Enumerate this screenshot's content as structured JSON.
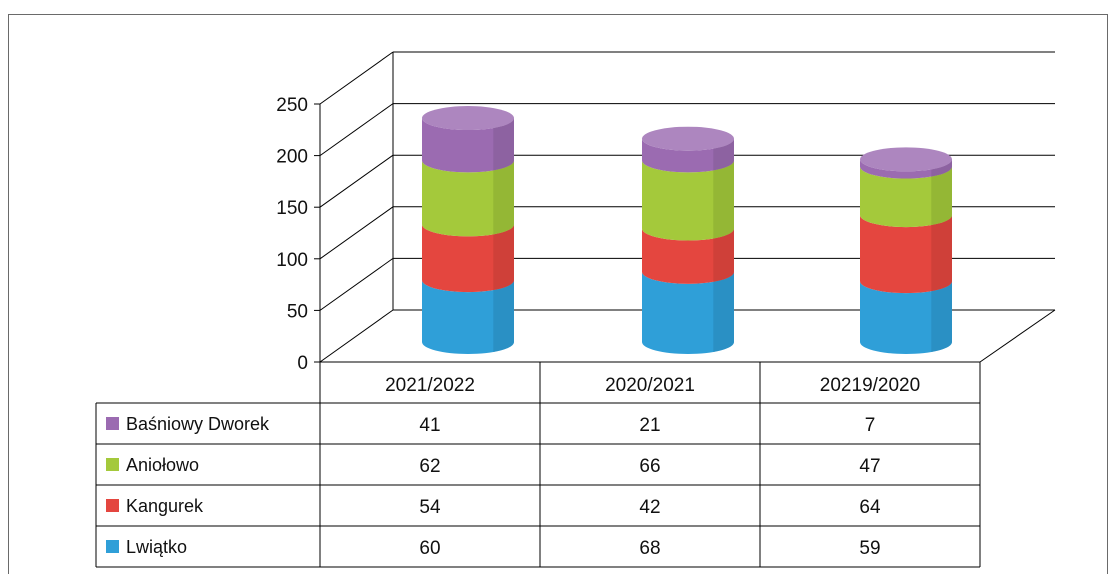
{
  "chart_data": {
    "type": "bar",
    "stacked": true,
    "style": "3d-cylinder",
    "categories": [
      "2021/2022",
      "2020/2021",
      "20219/2020"
    ],
    "series": [
      {
        "name": "Lwiątko",
        "values": [
          60,
          68,
          59
        ],
        "color": "#2f9fd8"
      },
      {
        "name": "Kangurek",
        "values": [
          54,
          42,
          64
        ],
        "color": "#e4463f"
      },
      {
        "name": "Aniołowo",
        "values": [
          62,
          66,
          47
        ],
        "color": "#a4c93b"
      },
      {
        "name": "Baśniowy Dworek",
        "values": [
          41,
          21,
          7
        ],
        "color": "#9b6bb1"
      }
    ],
    "table_rows_order": [
      "Baśniowy Dworek",
      "Aniołowo",
      "Kangurek",
      "Lwiątko"
    ],
    "yticks": [
      0,
      50,
      100,
      150,
      200,
      250
    ],
    "ylim": [
      0,
      250
    ],
    "title": "",
    "xlabel": "",
    "ylabel": "",
    "grid": true,
    "legend": "data-table"
  }
}
